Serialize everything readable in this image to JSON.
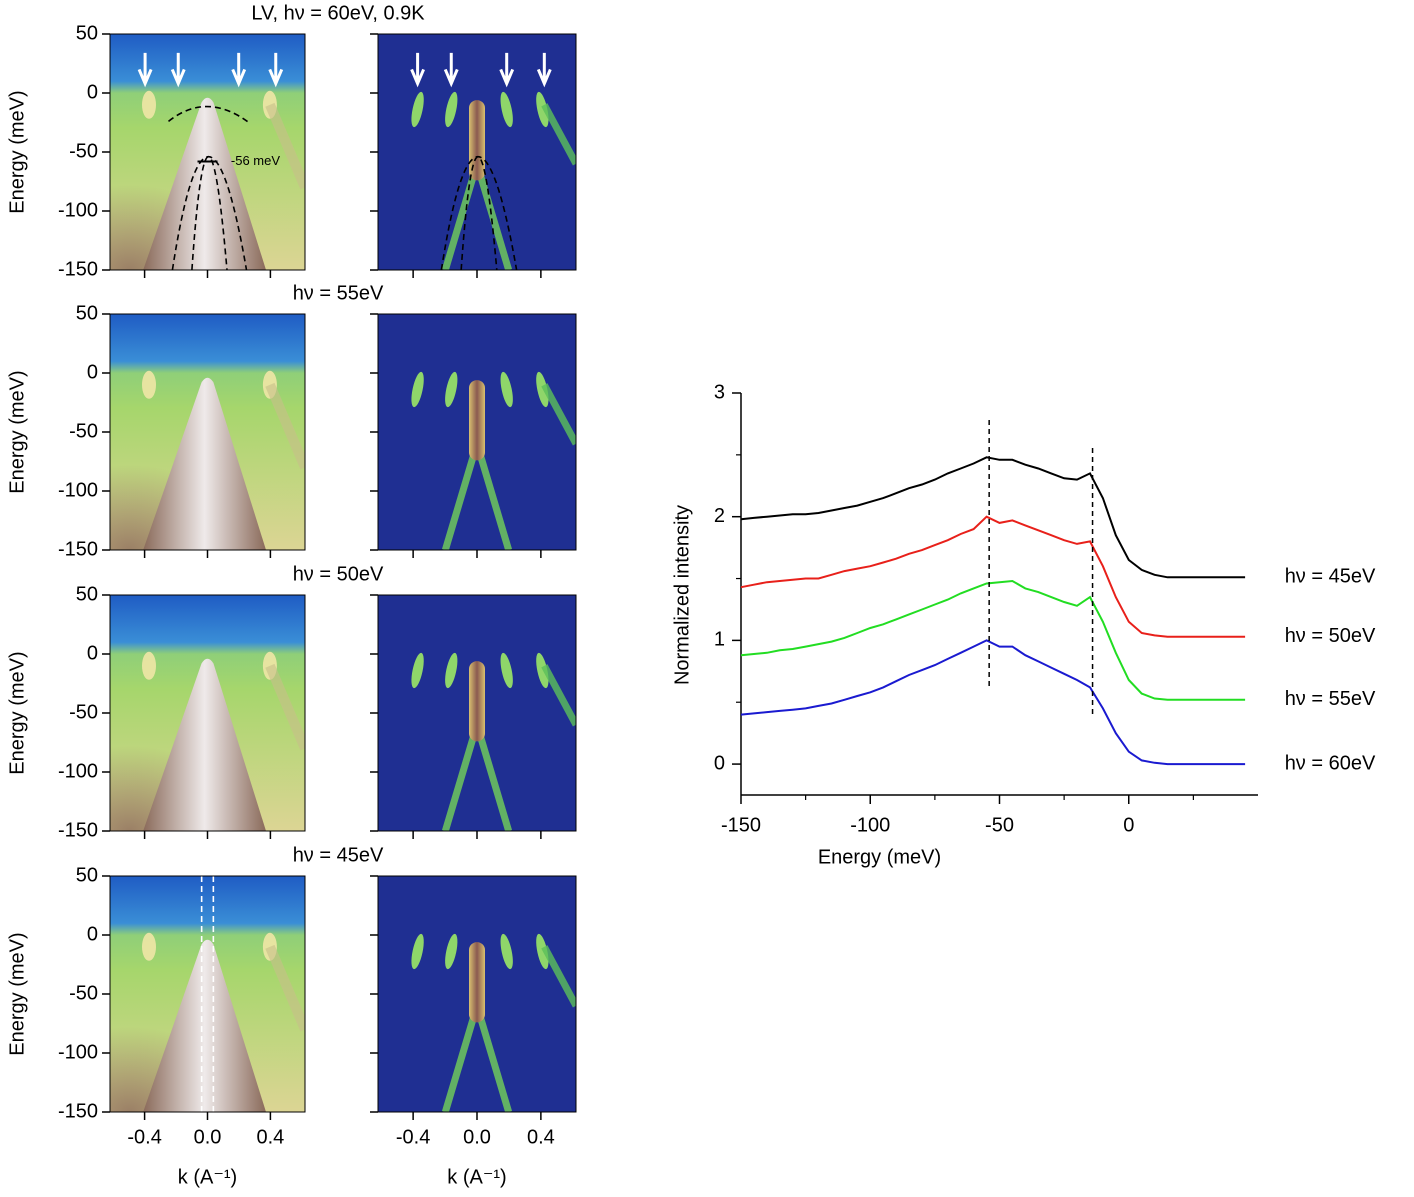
{
  "chart_data": [
    {
      "type": "heatmap",
      "style": "raw",
      "title": "LV,  hν = 60eV, 0.9K",
      "ylabel": "Energy (meV)",
      "annotation": "-56 meV",
      "xlim": [
        -0.62,
        0.62
      ],
      "ylim": [
        -150,
        50
      ],
      "xticks": [
        -0.4,
        {
          "value": 0,
          "label": "0.0"
        },
        0.4
      ],
      "yticks": [
        -150,
        -100,
        -50,
        0,
        50
      ]
    },
    {
      "type": "heatmap",
      "style": "derivative",
      "xlim": [
        -0.62,
        0.62
      ],
      "ylim": [
        -150,
        50
      ],
      "xticks": [
        -0.4,
        {
          "value": 0,
          "label": "0.0"
        },
        0.4
      ],
      "yticks": [
        -150,
        -100,
        -50,
        0,
        50
      ]
    },
    {
      "type": "heatmap",
      "style": "raw",
      "title": "hν = 55eV",
      "ylabel": "Energy (meV)",
      "xlim": [
        -0.62,
        0.62
      ],
      "ylim": [
        -150,
        50
      ],
      "xticks": [
        -0.4,
        {
          "value": 0,
          "label": "0.0"
        },
        0.4
      ],
      "yticks": [
        -150,
        -100,
        -50,
        0,
        50
      ]
    },
    {
      "type": "heatmap",
      "style": "derivative",
      "xlim": [
        -0.62,
        0.62
      ],
      "ylim": [
        -150,
        50
      ],
      "xticks": [
        -0.4,
        {
          "value": 0,
          "label": "0.0"
        },
        0.4
      ],
      "yticks": [
        -150,
        -100,
        -50,
        0,
        50
      ]
    },
    {
      "type": "heatmap",
      "style": "raw",
      "title": "hν = 50eV",
      "ylabel": "Energy (meV)",
      "xlim": [
        -0.62,
        0.62
      ],
      "ylim": [
        -150,
        50
      ],
      "xticks": [
        -0.4,
        {
          "value": 0,
          "label": "0.0"
        },
        0.4
      ],
      "yticks": [
        -150,
        -100,
        -50,
        0,
        50
      ]
    },
    {
      "type": "heatmap",
      "style": "derivative",
      "xlim": [
        -0.62,
        0.62
      ],
      "ylim": [
        -150,
        50
      ],
      "xticks": [
        -0.4,
        {
          "value": 0,
          "label": "0.0"
        },
        0.4
      ],
      "yticks": [
        -150,
        -100,
        -50,
        0,
        50
      ]
    },
    {
      "type": "heatmap",
      "style": "raw",
      "title": "hν = 45eV",
      "ylabel": "Energy (meV)",
      "xlabel": "k (A⁻¹)",
      "xlim": [
        -0.62,
        0.62
      ],
      "ylim": [
        -150,
        50
      ],
      "xticks": [
        -0.4,
        {
          "value": 0,
          "label": "0.0"
        },
        0.4
      ],
      "yticks": [
        -150,
        -100,
        -50,
        0,
        50
      ]
    },
    {
      "type": "heatmap",
      "style": "derivative",
      "xlabel": "k (A⁻¹)",
      "xlim": [
        -0.62,
        0.62
      ],
      "ylim": [
        -150,
        50
      ],
      "xticks": [
        -0.4,
        {
          "value": 0,
          "label": "0.0"
        },
        0.4
      ],
      "yticks": [
        -150,
        -100,
        -50,
        0,
        50
      ]
    },
    {
      "type": "line",
      "xlabel": "Energy (meV)",
      "ylabel": "Normalized intensity",
      "x": [
        -150,
        -145,
        -140,
        -135,
        -130,
        -125,
        -120,
        -115,
        -110,
        -105,
        -100,
        -95,
        -90,
        -85,
        -80,
        -75,
        -70,
        -65,
        -60,
        -55,
        -50,
        -45,
        -40,
        -35,
        -30,
        -25,
        -20,
        -15,
        -10,
        -5,
        0,
        5,
        10,
        15,
        20,
        25,
        30,
        35,
        40,
        45
      ],
      "xlim": [
        -150,
        50
      ],
      "ylim": [
        -0.25,
        3
      ],
      "xticks": [
        -150,
        -100,
        -50,
        0
      ],
      "yticks": [
        0,
        1,
        2,
        3
      ],
      "xminorticks": [
        -125,
        -75,
        -25,
        25
      ],
      "yminorticks": [
        0.5,
        1.5,
        2.5
      ],
      "vlines": [
        -54,
        -14
      ],
      "series": [
        {
          "name": "hν = 45eV",
          "color": "#000000",
          "values": [
            1.98,
            1.99,
            2.0,
            2.01,
            2.02,
            2.02,
            2.03,
            2.05,
            2.07,
            2.09,
            2.12,
            2.15,
            2.19,
            2.23,
            2.26,
            2.3,
            2.35,
            2.39,
            2.43,
            2.48,
            2.46,
            2.46,
            2.42,
            2.39,
            2.35,
            2.31,
            2.3,
            2.35,
            2.15,
            1.85,
            1.65,
            1.57,
            1.53,
            1.51,
            1.51,
            1.51,
            1.51,
            1.51,
            1.51,
            1.51
          ]
        },
        {
          "name": "hν = 50eV",
          "color": "#e8201a",
          "values": [
            1.43,
            1.45,
            1.47,
            1.48,
            1.49,
            1.5,
            1.5,
            1.53,
            1.56,
            1.58,
            1.6,
            1.63,
            1.66,
            1.7,
            1.73,
            1.77,
            1.81,
            1.86,
            1.9,
            2.0,
            1.95,
            1.97,
            1.93,
            1.89,
            1.85,
            1.81,
            1.78,
            1.8,
            1.6,
            1.35,
            1.15,
            1.06,
            1.04,
            1.03,
            1.03,
            1.03,
            1.03,
            1.03,
            1.03,
            1.03
          ]
        },
        {
          "name": "hν = 55eV",
          "color": "#22dd22",
          "values": [
            0.88,
            0.89,
            0.9,
            0.92,
            0.93,
            0.95,
            0.97,
            0.99,
            1.02,
            1.06,
            1.1,
            1.13,
            1.17,
            1.21,
            1.25,
            1.29,
            1.33,
            1.38,
            1.42,
            1.46,
            1.47,
            1.48,
            1.42,
            1.39,
            1.35,
            1.31,
            1.28,
            1.35,
            1.15,
            0.9,
            0.68,
            0.57,
            0.53,
            0.52,
            0.52,
            0.52,
            0.52,
            0.52,
            0.52,
            0.52
          ]
        },
        {
          "name": "hν = 60eV",
          "color": "#1a1ad0",
          "values": [
            0.4,
            0.41,
            0.42,
            0.43,
            0.44,
            0.45,
            0.47,
            0.49,
            0.52,
            0.55,
            0.58,
            0.62,
            0.67,
            0.72,
            0.76,
            0.8,
            0.85,
            0.9,
            0.95,
            1.0,
            0.95,
            0.95,
            0.88,
            0.83,
            0.78,
            0.73,
            0.68,
            0.62,
            0.45,
            0.25,
            0.1,
            0.03,
            0.01,
            0,
            0,
            0,
            0,
            0,
            0,
            0
          ]
        }
      ]
    }
  ]
}
